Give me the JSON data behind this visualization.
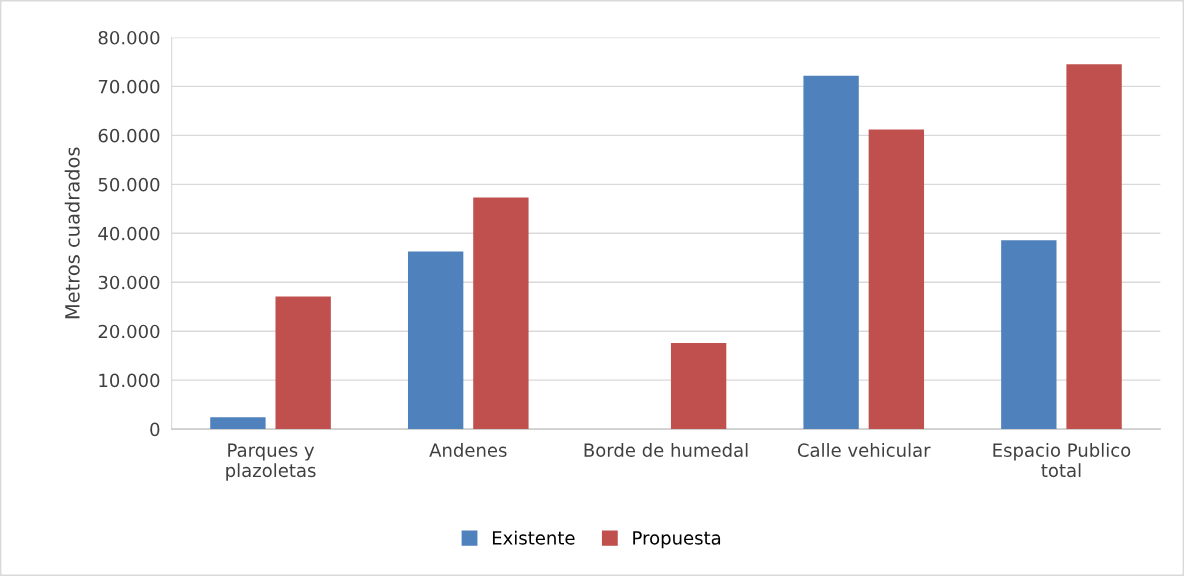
{
  "chart_data": {
    "type": "bar",
    "ylabel": "Metros cuadrados",
    "categories": [
      "Parques y\nplazoletas",
      "Andenes",
      "Borde de humedal",
      "Calle vehicular",
      "Espacio Publico\ntotal"
    ],
    "series": [
      {
        "name": "Existente",
        "color": "#4f81bd",
        "values": [
          2400,
          36300,
          0,
          72200,
          38600
        ]
      },
      {
        "name": "Propuesta",
        "color": "#c0504d",
        "values": [
          27100,
          47300,
          17600,
          61200,
          74500
        ]
      }
    ],
    "ylim": [
      0,
      80000
    ],
    "yticks": [
      {
        "value": 0,
        "label": "0"
      },
      {
        "value": 10000,
        "label": "10.000"
      },
      {
        "value": 20000,
        "label": "20.000"
      },
      {
        "value": 30000,
        "label": "30.000"
      },
      {
        "value": 40000,
        "label": "40.000"
      },
      {
        "value": 50000,
        "label": "50.000"
      },
      {
        "value": 60000,
        "label": "60.000"
      },
      {
        "value": 70000,
        "label": "70.000"
      },
      {
        "value": 80000,
        "label": "80.000"
      }
    ],
    "grid": "y",
    "legend": "bottom"
  }
}
